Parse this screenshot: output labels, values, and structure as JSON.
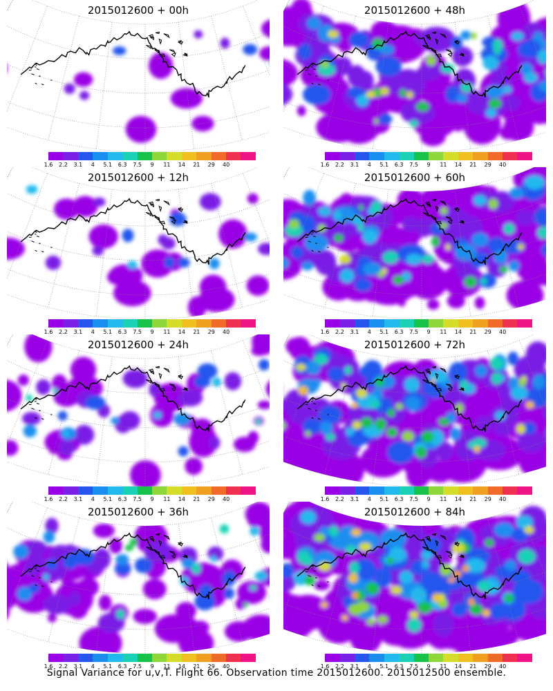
{
  "panels": [
    {
      "title": "2015012600 + 00h",
      "lead_h": 0
    },
    {
      "title": "2015012600 + 48h",
      "lead_h": 48
    },
    {
      "title": "2015012600 + 12h",
      "lead_h": 12
    },
    {
      "title": "2015012600 + 60h",
      "lead_h": 60
    },
    {
      "title": "2015012600 + 24h",
      "lead_h": 24
    },
    {
      "title": "2015012600 + 72h",
      "lead_h": 72
    },
    {
      "title": "2015012600 + 36h",
      "lead_h": 36
    },
    {
      "title": "2015012600 + 84h",
      "lead_h": 84
    }
  ],
  "colorbar": {
    "labels": [
      "1.6",
      "2.2",
      "3.1",
      "4",
      "5.1",
      "6.3",
      "7.5",
      "9",
      "11",
      "14",
      "21",
      "29",
      "40"
    ],
    "colors": [
      "#9a00e6",
      "#7a1fe6",
      "#2456ee",
      "#1a8ef0",
      "#22b9ee",
      "#19d2b6",
      "#16c24a",
      "#8fd63a",
      "#d6dc2a",
      "#f0c020",
      "#f0a020",
      "#f06a2a",
      "#f03050",
      "#ee1486"
    ]
  },
  "footer": "Signal Variance for u,v,T. Flight 66. Observation time 2015012600. 2015012500 ensemble."
}
